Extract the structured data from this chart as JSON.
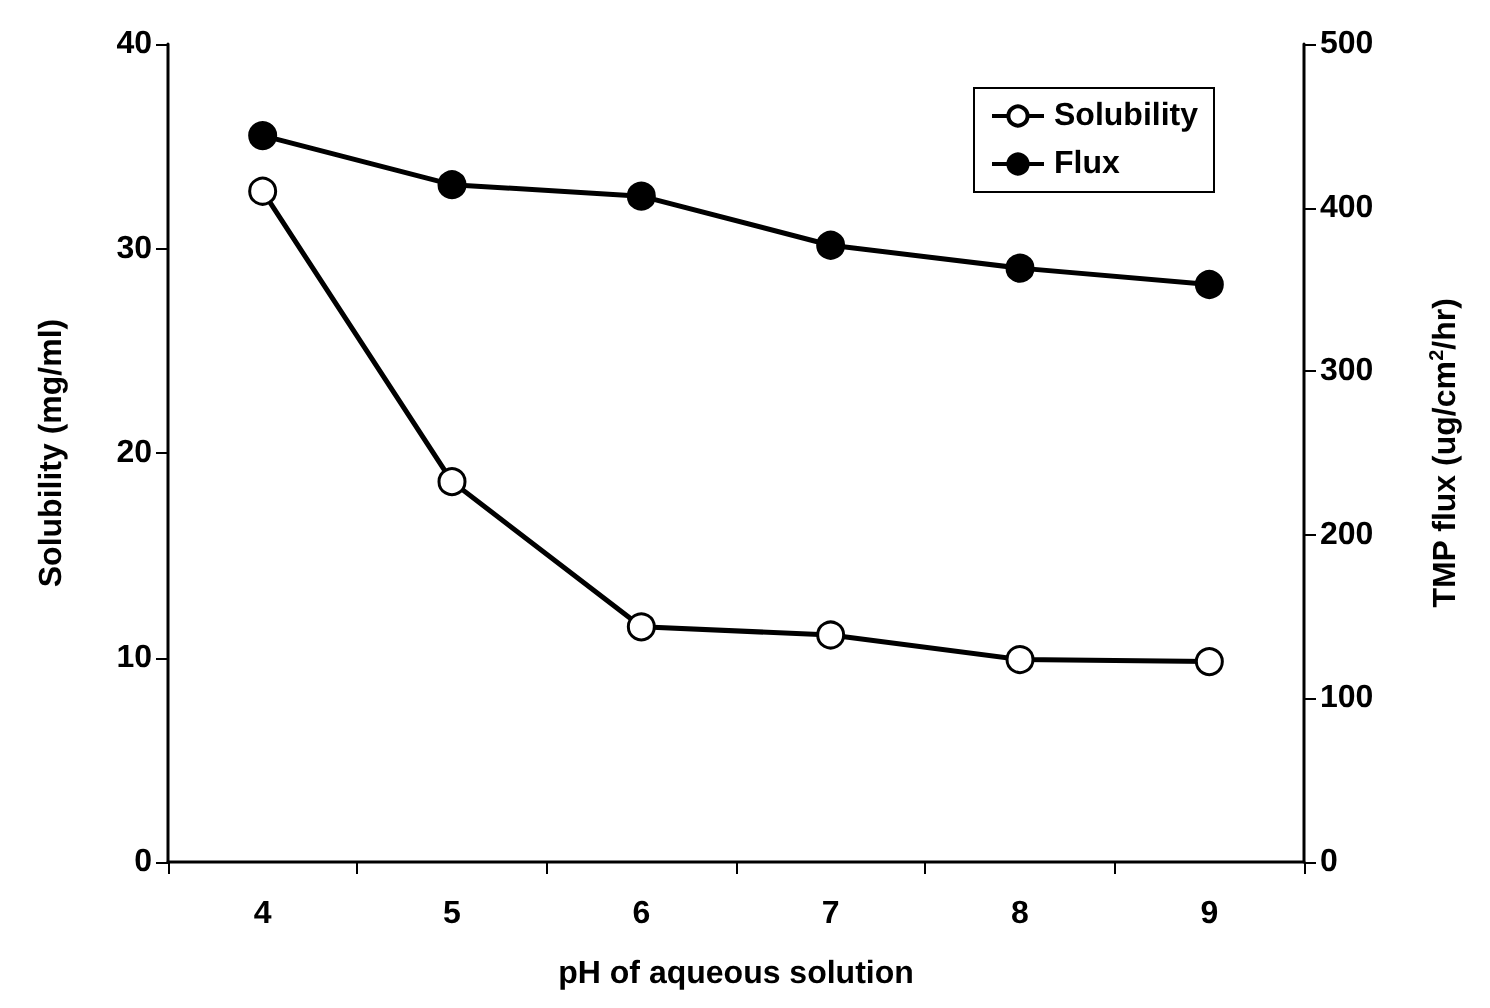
{
  "chart_data": {
    "type": "line",
    "xlabel": "pH of aqueous solution",
    "ylabel": "Solubility (mg/ml)",
    "y2label": "TMP flux (ug/cm$^{2}$/hr)",
    "categories": [
      "4",
      "5",
      "6",
      "7",
      "8",
      "9"
    ],
    "series": [
      {
        "name": "Solubility",
        "color": "#000000",
        "values": [
          32.8,
          18.6,
          11.5,
          11.1,
          9.9,
          9.8
        ]
      },
      {
        "name": "Flux",
        "color": "#000000",
        "axis": "y2",
        "values": [
          444,
          414,
          407,
          377,
          363,
          353
        ]
      }
    ],
    "ylim": [
      0,
      40
    ],
    "yticks": [
      0,
      10,
      20,
      30,
      40
    ],
    "y2lim": [
      0,
      500
    ],
    "y2ticks": [
      0,
      100,
      200,
      300,
      400,
      500
    ],
    "grid": false,
    "legend": "top right",
    "marker": "circle",
    "line_style": "solid"
  }
}
